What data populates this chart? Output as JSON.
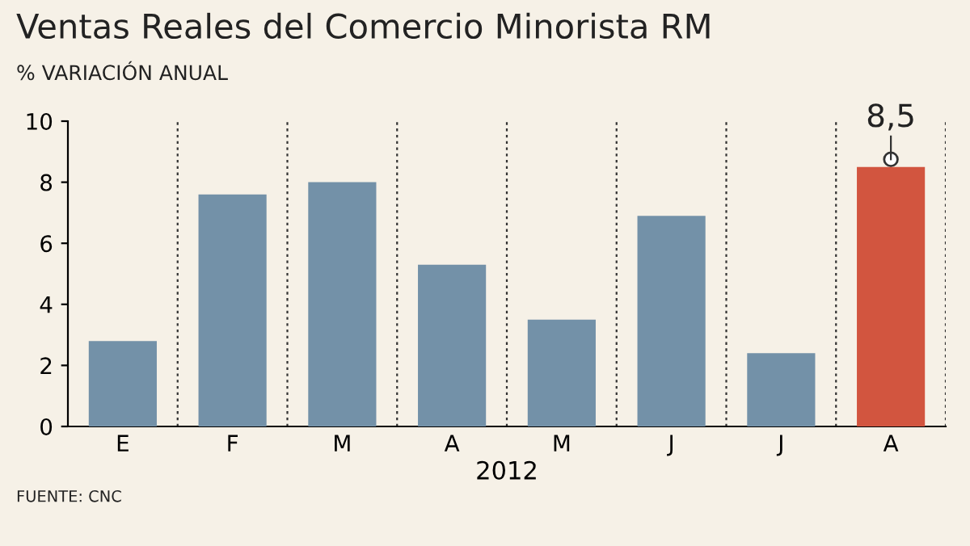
{
  "chart_data": {
    "type": "bar",
    "title": "Ventas Reales del Comercio Minorista RM",
    "subtitle": "% VARIACIÓN ANUAL",
    "xlabel": "2012",
    "categories": [
      "E",
      "F",
      "M",
      "A",
      "M",
      "J",
      "J",
      "A"
    ],
    "values": [
      2.8,
      7.6,
      8.0,
      5.3,
      3.5,
      6.9,
      2.4,
      8.5
    ],
    "colors": [
      "#7391a8",
      "#7391a8",
      "#7391a8",
      "#7391a8",
      "#7391a8",
      "#7391a8",
      "#7391a8",
      "#d2553f"
    ],
    "value_labels": [
      null,
      null,
      null,
      null,
      null,
      null,
      null,
      "8,5"
    ],
    "ylim": [
      0,
      10
    ],
    "yticks": [
      0,
      2,
      4,
      6,
      8,
      10
    ],
    "grid": "x",
    "annotations": [
      "FUENTE: CNC"
    ]
  }
}
